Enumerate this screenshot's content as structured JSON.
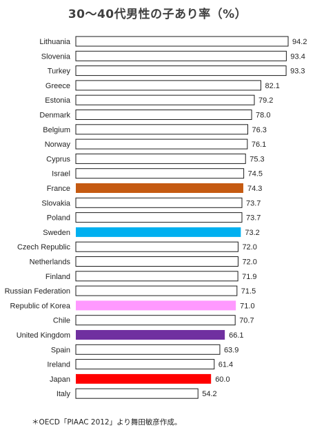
{
  "chart_data": {
    "type": "bar",
    "orientation": "horizontal",
    "title": "30〜40代男性の子あり率（%）",
    "xlabel": "",
    "ylabel": "",
    "xlim": [
      0,
      100
    ],
    "grid": false,
    "legend": "none",
    "categories": [
      "Lithuania",
      "Slovenia",
      "Turkey",
      "Greece",
      "Estonia",
      "Denmark",
      "Belgium",
      "Norway",
      "Cyprus",
      "Israel",
      "France",
      "Slovakia",
      "Poland",
      "Sweden",
      "Czech Republic",
      "Netherlands",
      "Finland",
      "Russian Federation",
      "Republic of Korea",
      "Chile",
      "United Kingdom",
      "Spain",
      "Ireland",
      "Japan",
      "Italy"
    ],
    "values": [
      94.2,
      93.4,
      93.3,
      82.1,
      79.2,
      78.0,
      76.3,
      76.1,
      75.3,
      74.5,
      74.3,
      73.7,
      73.7,
      73.2,
      72.0,
      72.0,
      71.9,
      71.5,
      71.0,
      70.7,
      66.1,
      63.9,
      61.4,
      60.0,
      54.2
    ],
    "value_labels": [
      "94.2",
      "93.4",
      "93.3",
      "82.1",
      "79.2",
      "78.0",
      "76.3",
      "76.1",
      "75.3",
      "74.5",
      "74.3",
      "73.7",
      "73.7",
      "73.2",
      "72.0",
      "72.0",
      "71.9",
      "71.5",
      "71.0",
      "70.7",
      "66.1",
      "63.9",
      "61.4",
      "60.0",
      "54.2"
    ],
    "bar_colors": {
      "default": "#ffffff",
      "default_stroke": "#1a1a1a",
      "France": "#c55a11",
      "Sweden": "#00b0f0",
      "Republic of Korea": "#ff99ff",
      "United Kingdom": "#7030a0",
      "Japan": "#ff0000"
    }
  },
  "footnote": "＊OECD「PIAAC 2012」より舞田敏彦作成。"
}
